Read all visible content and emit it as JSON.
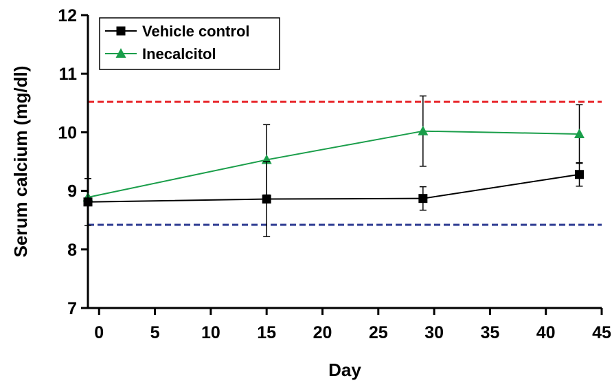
{
  "chart_data": {
    "type": "line",
    "xlabel": "Day",
    "ylabel": "Serum calcium (mg/dl)",
    "xlim": [
      -1,
      45
    ],
    "ylim": [
      7,
      12
    ],
    "x_ticks": [
      "0",
      "5",
      "10",
      "15",
      "20",
      "25",
      "30",
      "35",
      "40",
      "45"
    ],
    "y_ticks": [
      "7",
      "8",
      "9",
      "10",
      "11",
      "12"
    ],
    "grid": false,
    "legend_position": "top-left",
    "series": [
      {
        "name": "Vehicle control",
        "color": "#000000",
        "marker": "square",
        "x": [
          -1,
          15,
          29,
          43
        ],
        "y": [
          8.81,
          8.86,
          8.87,
          9.28
        ],
        "error": [
          0.4,
          0.64,
          0.2,
          0.2
        ]
      },
      {
        "name": "Inecalcitol",
        "color": "#1a9e4a",
        "marker": "triangle",
        "x": [
          -1,
          15,
          29,
          43
        ],
        "y": [
          8.89,
          9.53,
          10.02,
          9.97
        ],
        "error": [
          0.0,
          0.6,
          0.6,
          0.5
        ]
      }
    ],
    "reference_lines": [
      {
        "y": 10.52,
        "color": "#e8262a",
        "style": "dashed"
      },
      {
        "y": 8.42,
        "color": "#2b3990",
        "style": "dashed"
      }
    ]
  }
}
